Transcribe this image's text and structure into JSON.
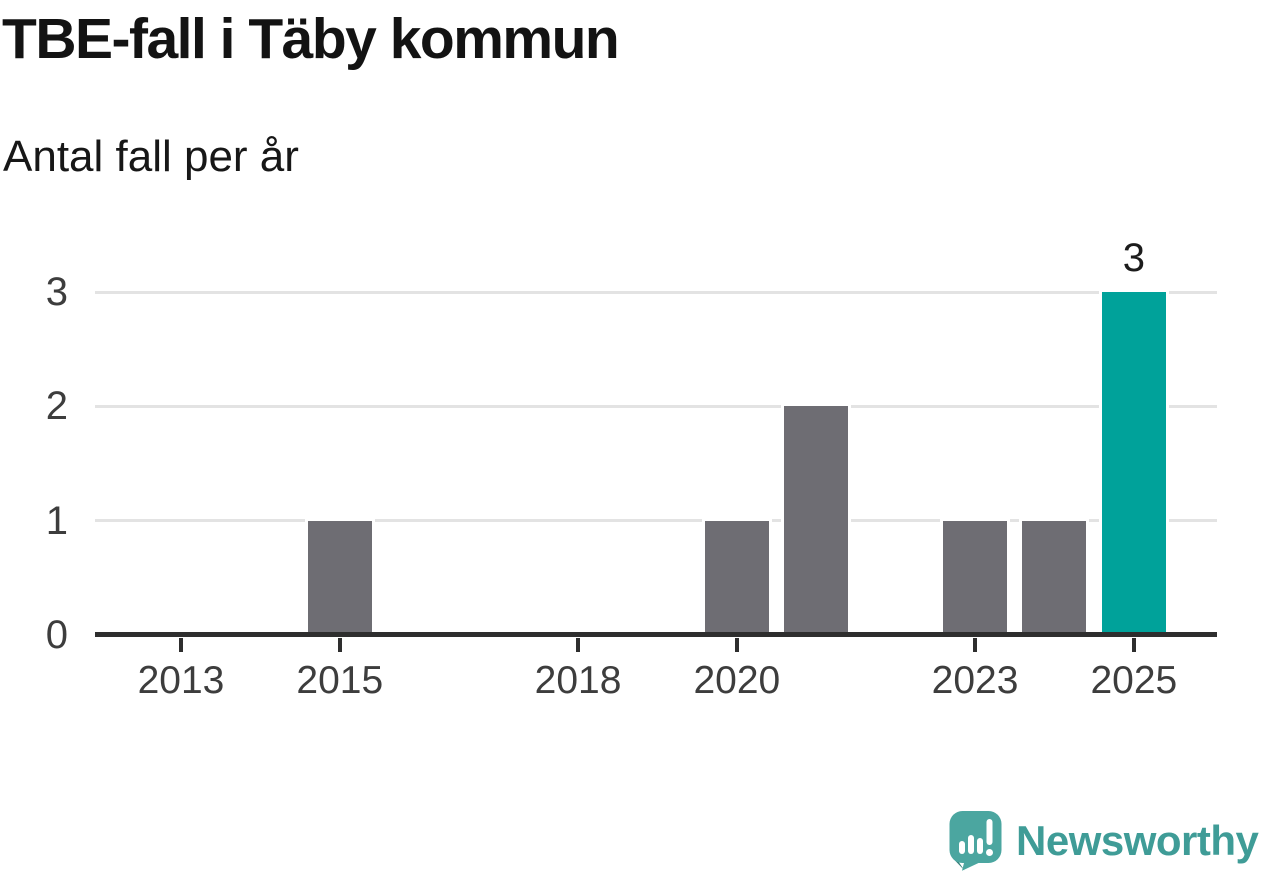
{
  "header": {
    "title": "TBE-fall i Täby kommun",
    "subtitle": "Antal fall per år"
  },
  "footer": {
    "brand_name": "Newsworthy",
    "logo_icon": "newsworthy-speech-bubble-bar-chart-icon"
  },
  "colors": {
    "background": "#ffffff",
    "bar": "#6e6d73",
    "highlight": "#00a29a",
    "gridline": "#e3e3e3",
    "axis": "#2e2e2e",
    "title_text": "#131313",
    "tick_text": "#3d3d3d",
    "brand_teal": "#3f9c97"
  },
  "chart_data": {
    "type": "bar",
    "title": "TBE-fall i Täby kommun",
    "subtitle": "Antal fall per år",
    "categories": [
      2012,
      2013,
      2014,
      2015,
      2016,
      2017,
      2018,
      2019,
      2020,
      2021,
      2022,
      2023,
      2024,
      2025
    ],
    "values": [
      0,
      0,
      0,
      1,
      0,
      0,
      0,
      0,
      1,
      2,
      0,
      1,
      1,
      3
    ],
    "highlight_category": 2025,
    "data_labels": [
      {
        "category": 2025,
        "label": "3"
      }
    ],
    "x_tick_labels": [
      "2013",
      "2015",
      "2018",
      "2020",
      "2023",
      "2025"
    ],
    "y_tick_labels": [
      "0",
      "1",
      "2",
      "3"
    ],
    "ylim": [
      0,
      3
    ],
    "xlabel": "",
    "ylabel": "",
    "grid": "horizontal",
    "legend": "none"
  }
}
